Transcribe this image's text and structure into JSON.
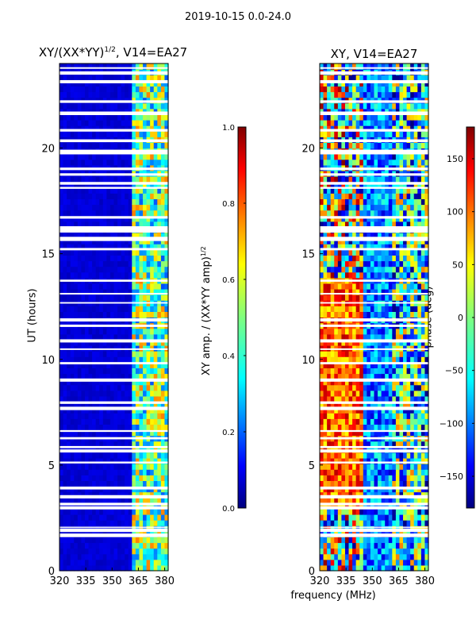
{
  "suptitle": "2019-10-15 0.0-24.0",
  "colors": {
    "background": "#ffffff",
    "gap": "#ffffff",
    "axis": "#000000"
  },
  "chart_data": [
    {
      "type": "heatmap",
      "title": "XY/(XX*YY)^1/2, V14=EA27",
      "title_main": "XY/(XX*YY)",
      "title_sup": "1/2",
      "title_tail": ", V14=EA27",
      "xlabel": "",
      "ylabel": "UT (hours)",
      "xlim": [
        320,
        382
      ],
      "ylim": [
        0,
        24
      ],
      "xticks": [
        320,
        335,
        350,
        365,
        380
      ],
      "yticks": [
        0,
        5,
        10,
        15,
        20
      ],
      "colormap": "jet",
      "colorbar": {
        "label": "XY amp. / (XX*YY amp)^1/2",
        "label_main": "XY amp. / (XX*YY amp)",
        "label_sup": "1/2",
        "range": [
          0.0,
          1.0
        ],
        "ticks": [
          0.0,
          0.2,
          0.4,
          0.6,
          0.8,
          1.0
        ],
        "tick_labels": [
          "0.0",
          "0.2",
          "0.4",
          "0.6",
          "0.8",
          "1.0"
        ]
      }
    },
    {
      "type": "heatmap",
      "title": "XY, V14=EA27",
      "xlabel": "frequency (MHz)",
      "ylabel": "",
      "xlim": [
        320,
        382
      ],
      "ylim": [
        0,
        24
      ],
      "xticks": [
        320,
        335,
        350,
        365,
        380
      ],
      "yticks": [
        0,
        5,
        10,
        15,
        20
      ],
      "colormap": "jet",
      "colorbar": {
        "label": "phase (deg)",
        "range": [
          -180,
          180
        ],
        "ticks": [
          -150,
          -100,
          -50,
          0,
          50,
          100,
          150
        ],
        "tick_labels": [
          "−150",
          "−100",
          "−50",
          "0",
          "50",
          "100",
          "150"
        ]
      }
    }
  ]
}
